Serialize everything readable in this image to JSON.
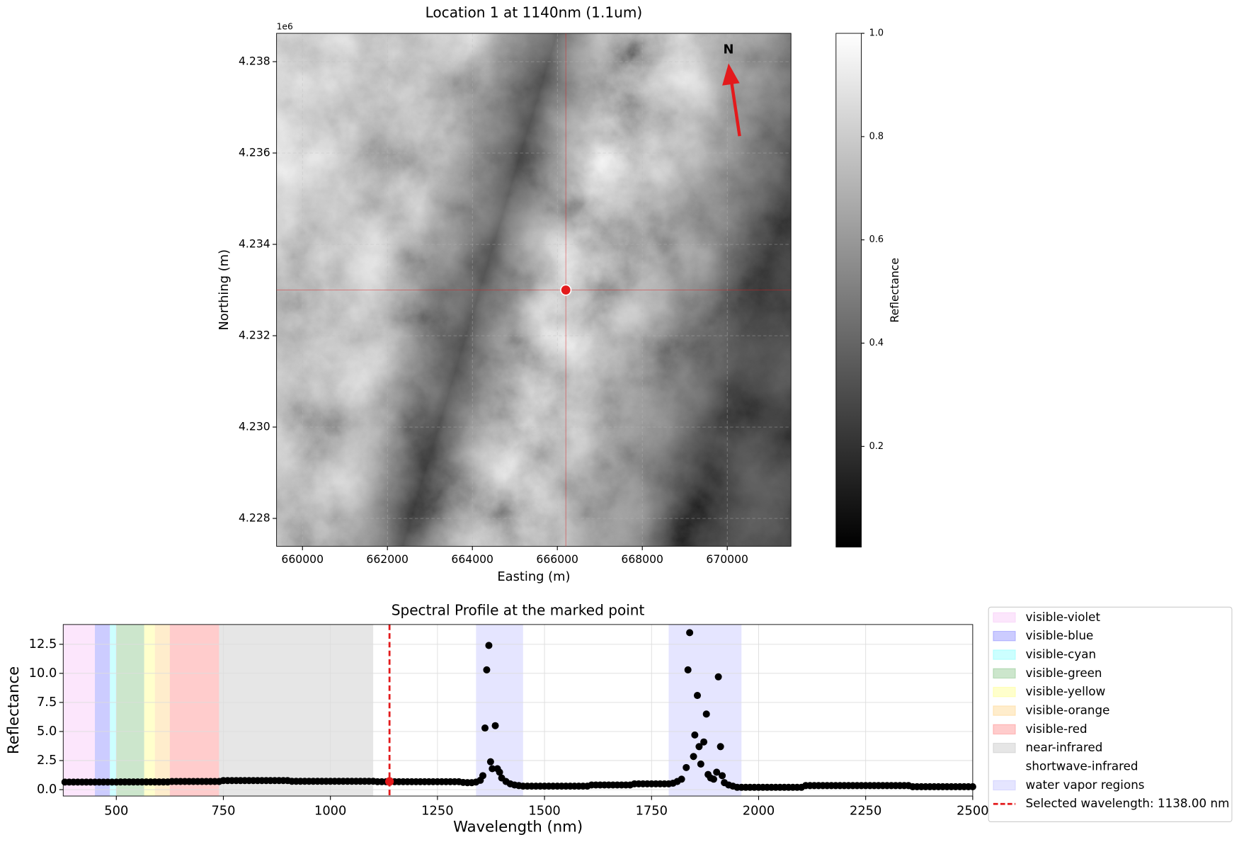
{
  "chart_data": [
    {
      "type": "image",
      "title": "Location 1 at 1140nm (1.1um)",
      "xlabel": "Easting (m)",
      "ylabel": "Northing (m)",
      "y_offset_label": "1e6",
      "xlim": [
        659390,
        671500
      ],
      "ylim": [
        4227390,
        4238620
      ],
      "xticks": [
        660000,
        662000,
        664000,
        666000,
        668000,
        670000
      ],
      "yticks": [
        {
          "value": 4228000,
          "label": "4.228"
        },
        {
          "value": 4230000,
          "label": "4.230"
        },
        {
          "value": 4232000,
          "label": "4.232"
        },
        {
          "value": 4234000,
          "label": "4.234"
        },
        {
          "value": 4236000,
          "label": "4.236"
        },
        {
          "value": 4238000,
          "label": "4.238"
        }
      ],
      "grid": true,
      "colormap": "gray",
      "colorbar": {
        "label": "Reflectance",
        "lim": [
          0.005,
          1
        ],
        "ticks": [
          0.2,
          0.4,
          0.6,
          0.8,
          {
            "value": 1,
            "label": "1.0"
          }
        ]
      },
      "marker": {
        "x": 666200,
        "y": 4233000,
        "color": "#e31a1c"
      },
      "north_arrow": {
        "label": "N",
        "color": "#e31a1c"
      }
    },
    {
      "type": "scatter",
      "title": "Spectral Profile at the marked point",
      "xlabel": "Wavelength (nm)",
      "ylabel": "Reflectance",
      "xlim": [
        376,
        2500
      ],
      "ylim": [
        -0.55,
        14.2
      ],
      "xticks": [
        500,
        750,
        1000,
        1250,
        1500,
        1750,
        2000,
        2250,
        2500
      ],
      "yticks": [
        {
          "value": 0,
          "label": "0.0"
        },
        2.5,
        {
          "value": 5,
          "label": "5.0"
        },
        7.5,
        {
          "value": 10,
          "label": "10.0"
        },
        12.5
      ],
      "grid": true,
      "legend": "outside right",
      "bands": [
        {
          "name": "visible-violet",
          "color": "#ee82ee",
          "alpha": 0.2,
          "ranges": [
            [
              376,
              450
            ]
          ]
        },
        {
          "name": "visible-blue",
          "color": "#0000ff",
          "alpha": 0.2,
          "ranges": [
            [
              450,
              485
            ]
          ]
        },
        {
          "name": "visible-cyan",
          "color": "#00ffff",
          "alpha": 0.2,
          "ranges": [
            [
              485,
              500
            ]
          ]
        },
        {
          "name": "visible-green",
          "color": "#008000",
          "alpha": 0.2,
          "ranges": [
            [
              500,
              565
            ]
          ]
        },
        {
          "name": "visible-yellow",
          "color": "#ffff00",
          "alpha": 0.2,
          "ranges": [
            [
              565,
              590
            ]
          ]
        },
        {
          "name": "visible-orange",
          "color": "#ffa500",
          "alpha": 0.2,
          "ranges": [
            [
              590,
              625
            ]
          ]
        },
        {
          "name": "visible-red",
          "color": "#ff0000",
          "alpha": 0.2,
          "ranges": [
            [
              625,
              740
            ]
          ]
        },
        {
          "name": "near-infrared",
          "color": "#808080",
          "alpha": 0.2,
          "ranges": [
            [
              740,
              1100
            ]
          ]
        },
        {
          "name": "shortwave-infrared",
          "color": "#ffffff",
          "alpha": 0.2,
          "ranges": [
            [
              1100,
              2500
            ]
          ]
        },
        {
          "name": "water vapor regions",
          "color": "#0000ff",
          "alpha": 0.1,
          "ranges": [
            [
              1340,
              1450
            ],
            [
              1790,
              1960
            ]
          ]
        }
      ],
      "color": "#000000",
      "x": [
        380,
        390,
        400,
        410,
        420,
        430,
        440,
        450,
        460,
        470,
        480,
        490,
        500,
        510,
        520,
        530,
        540,
        550,
        560,
        570,
        580,
        590,
        600,
        610,
        620,
        630,
        640,
        650,
        660,
        670,
        680,
        690,
        700,
        710,
        720,
        730,
        740,
        750,
        760,
        770,
        780,
        790,
        800,
        810,
        820,
        830,
        840,
        850,
        860,
        870,
        880,
        890,
        900,
        910,
        920,
        930,
        940,
        950,
        960,
        970,
        980,
        990,
        1000,
        1010,
        1020,
        1030,
        1040,
        1050,
        1060,
        1070,
        1080,
        1090,
        1100,
        1110,
        1120,
        1130,
        1140,
        1150,
        1160,
        1170,
        1180,
        1190,
        1200,
        1210,
        1220,
        1230,
        1240,
        1250,
        1260,
        1270,
        1280,
        1290,
        1300,
        1310,
        1320,
        1330,
        1340,
        1350,
        1356,
        1361,
        1365,
        1370,
        1374,
        1378,
        1385,
        1390,
        1395,
        1400,
        1410,
        1420,
        1430,
        1440,
        1450,
        1460,
        1470,
        1480,
        1490,
        1500,
        1510,
        1520,
        1530,
        1540,
        1550,
        1560,
        1570,
        1580,
        1590,
        1600,
        1610,
        1620,
        1630,
        1640,
        1650,
        1660,
        1670,
        1680,
        1690,
        1700,
        1710,
        1720,
        1730,
        1740,
        1750,
        1760,
        1770,
        1780,
        1790,
        1800,
        1810,
        1820,
        1831,
        1835,
        1839,
        1848,
        1851,
        1857,
        1861,
        1865,
        1872,
        1878,
        1882,
        1888,
        1895,
        1902,
        1906,
        1911,
        1915,
        1920,
        1930,
        1940,
        1950,
        1960,
        1970,
        1980,
        1990,
        2000,
        2010,
        2020,
        2030,
        2040,
        2050,
        2060,
        2070,
        2080,
        2090,
        2100,
        2110,
        2120,
        2130,
        2140,
        2150,
        2160,
        2170,
        2180,
        2190,
        2200,
        2210,
        2220,
        2230,
        2240,
        2250,
        2260,
        2270,
        2280,
        2290,
        2300,
        2310,
        2320,
        2330,
        2340,
        2350,
        2360,
        2370,
        2380,
        2390,
        2400,
        2410,
        2420,
        2430,
        2440,
        2450,
        2460,
        2470,
        2480,
        2490,
        2500
      ],
      "values": [
        0.65,
        0.65,
        0.65,
        0.65,
        0.65,
        0.65,
        0.65,
        0.65,
        0.65,
        0.65,
        0.65,
        0.65,
        0.65,
        0.66,
        0.66,
        0.66,
        0.66,
        0.66,
        0.66,
        0.66,
        0.66,
        0.66,
        0.66,
        0.66,
        0.66,
        0.7,
        0.7,
        0.7,
        0.7,
        0.7,
        0.7,
        0.7,
        0.7,
        0.7,
        0.7,
        0.7,
        0.7,
        0.78,
        0.78,
        0.78,
        0.78,
        0.78,
        0.78,
        0.78,
        0.78,
        0.78,
        0.78,
        0.78,
        0.78,
        0.78,
        0.78,
        0.78,
        0.78,
        0.72,
        0.72,
        0.72,
        0.72,
        0.72,
        0.72,
        0.72,
        0.72,
        0.72,
        0.72,
        0.72,
        0.72,
        0.72,
        0.72,
        0.72,
        0.72,
        0.72,
        0.72,
        0.72,
        0.72,
        0.68,
        0.68,
        0.68,
        0.68,
        0.68,
        0.68,
        0.68,
        0.68,
        0.68,
        0.68,
        0.68,
        0.68,
        0.68,
        0.68,
        0.68,
        0.68,
        0.68,
        0.68,
        0.68,
        0.68,
        0.62,
        0.6,
        0.6,
        0.65,
        0.8,
        1.2,
        5.3,
        10.3,
        12.4,
        2.4,
        1.8,
        5.5,
        1.8,
        1.5,
        1.0,
        0.7,
        0.5,
        0.4,
        0.35,
        0.3,
        0.3,
        0.3,
        0.3,
        0.3,
        0.3,
        0.3,
        0.3,
        0.3,
        0.3,
        0.3,
        0.3,
        0.3,
        0.3,
        0.3,
        0.3,
        0.4,
        0.4,
        0.4,
        0.4,
        0.4,
        0.4,
        0.4,
        0.4,
        0.4,
        0.4,
        0.5,
        0.5,
        0.5,
        0.5,
        0.5,
        0.5,
        0.5,
        0.5,
        0.5,
        0.55,
        0.7,
        0.9,
        1.9,
        10.3,
        13.5,
        2.85,
        4.7,
        8.1,
        3.7,
        2.2,
        4.1,
        6.5,
        1.3,
        1.0,
        0.9,
        1.5,
        9.7,
        3.7,
        1.2,
        0.6,
        0.4,
        0.3,
        0.2,
        0.2,
        0.2,
        0.2,
        0.2,
        0.2,
        0.2,
        0.2,
        0.2,
        0.2,
        0.2,
        0.2,
        0.2,
        0.2,
        0.2,
        0.2,
        0.35,
        0.35,
        0.35,
        0.35,
        0.35,
        0.35,
        0.35,
        0.35,
        0.35,
        0.35,
        0.35,
        0.35,
        0.35,
        0.35,
        0.35,
        0.35,
        0.35,
        0.35,
        0.35,
        0.35,
        0.35,
        0.35,
        0.35,
        0.35,
        0.35,
        0.25,
        0.25,
        0.25,
        0.25,
        0.25,
        0.25,
        0.25,
        0.25,
        0.25,
        0.25,
        0.25,
        0.25,
        0.25,
        0.25,
        0.25
      ],
      "selected": {
        "label": "Selected wavelength: 1138.00 nm",
        "x": 1138,
        "value": 0.7,
        "color": "#e31a1c"
      }
    }
  ]
}
